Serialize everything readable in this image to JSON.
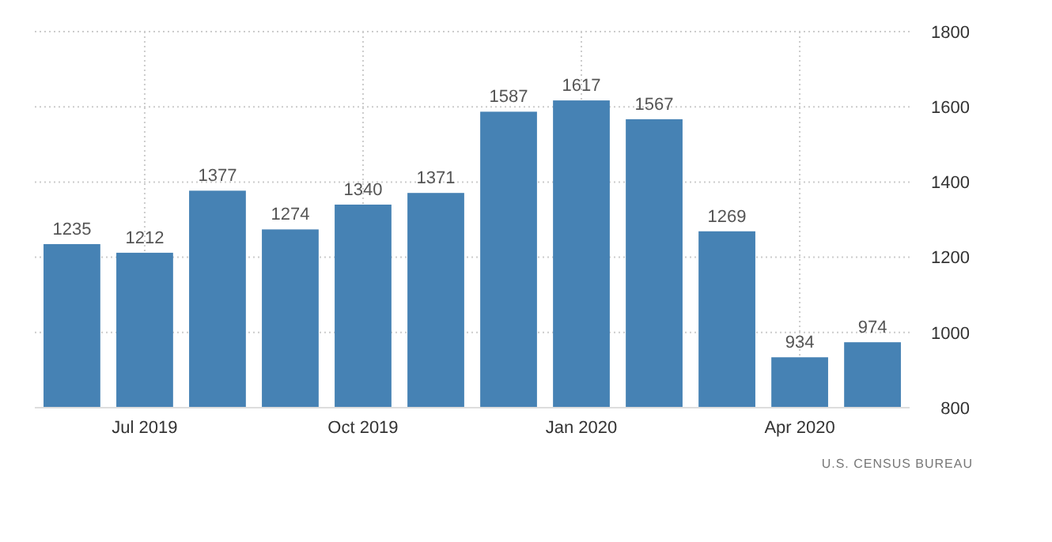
{
  "chart_data": {
    "type": "bar",
    "categories": [
      null,
      "Jul 2019",
      null,
      null,
      "Oct 2019",
      null,
      null,
      "Jan 2020",
      null,
      null,
      "Apr 2020",
      null
    ],
    "values": [
      1235,
      1212,
      1377,
      1274,
      1340,
      1371,
      1587,
      1617,
      1567,
      1269,
      934,
      974
    ],
    "color": "#4682b4",
    "ylim": [
      800,
      1800
    ],
    "yticks": [
      800,
      1000,
      1200,
      1400,
      1600,
      1800
    ],
    "grid": true,
    "data_labels": true,
    "annotations": [
      "U.S. CENSUS BUREAU"
    ]
  }
}
